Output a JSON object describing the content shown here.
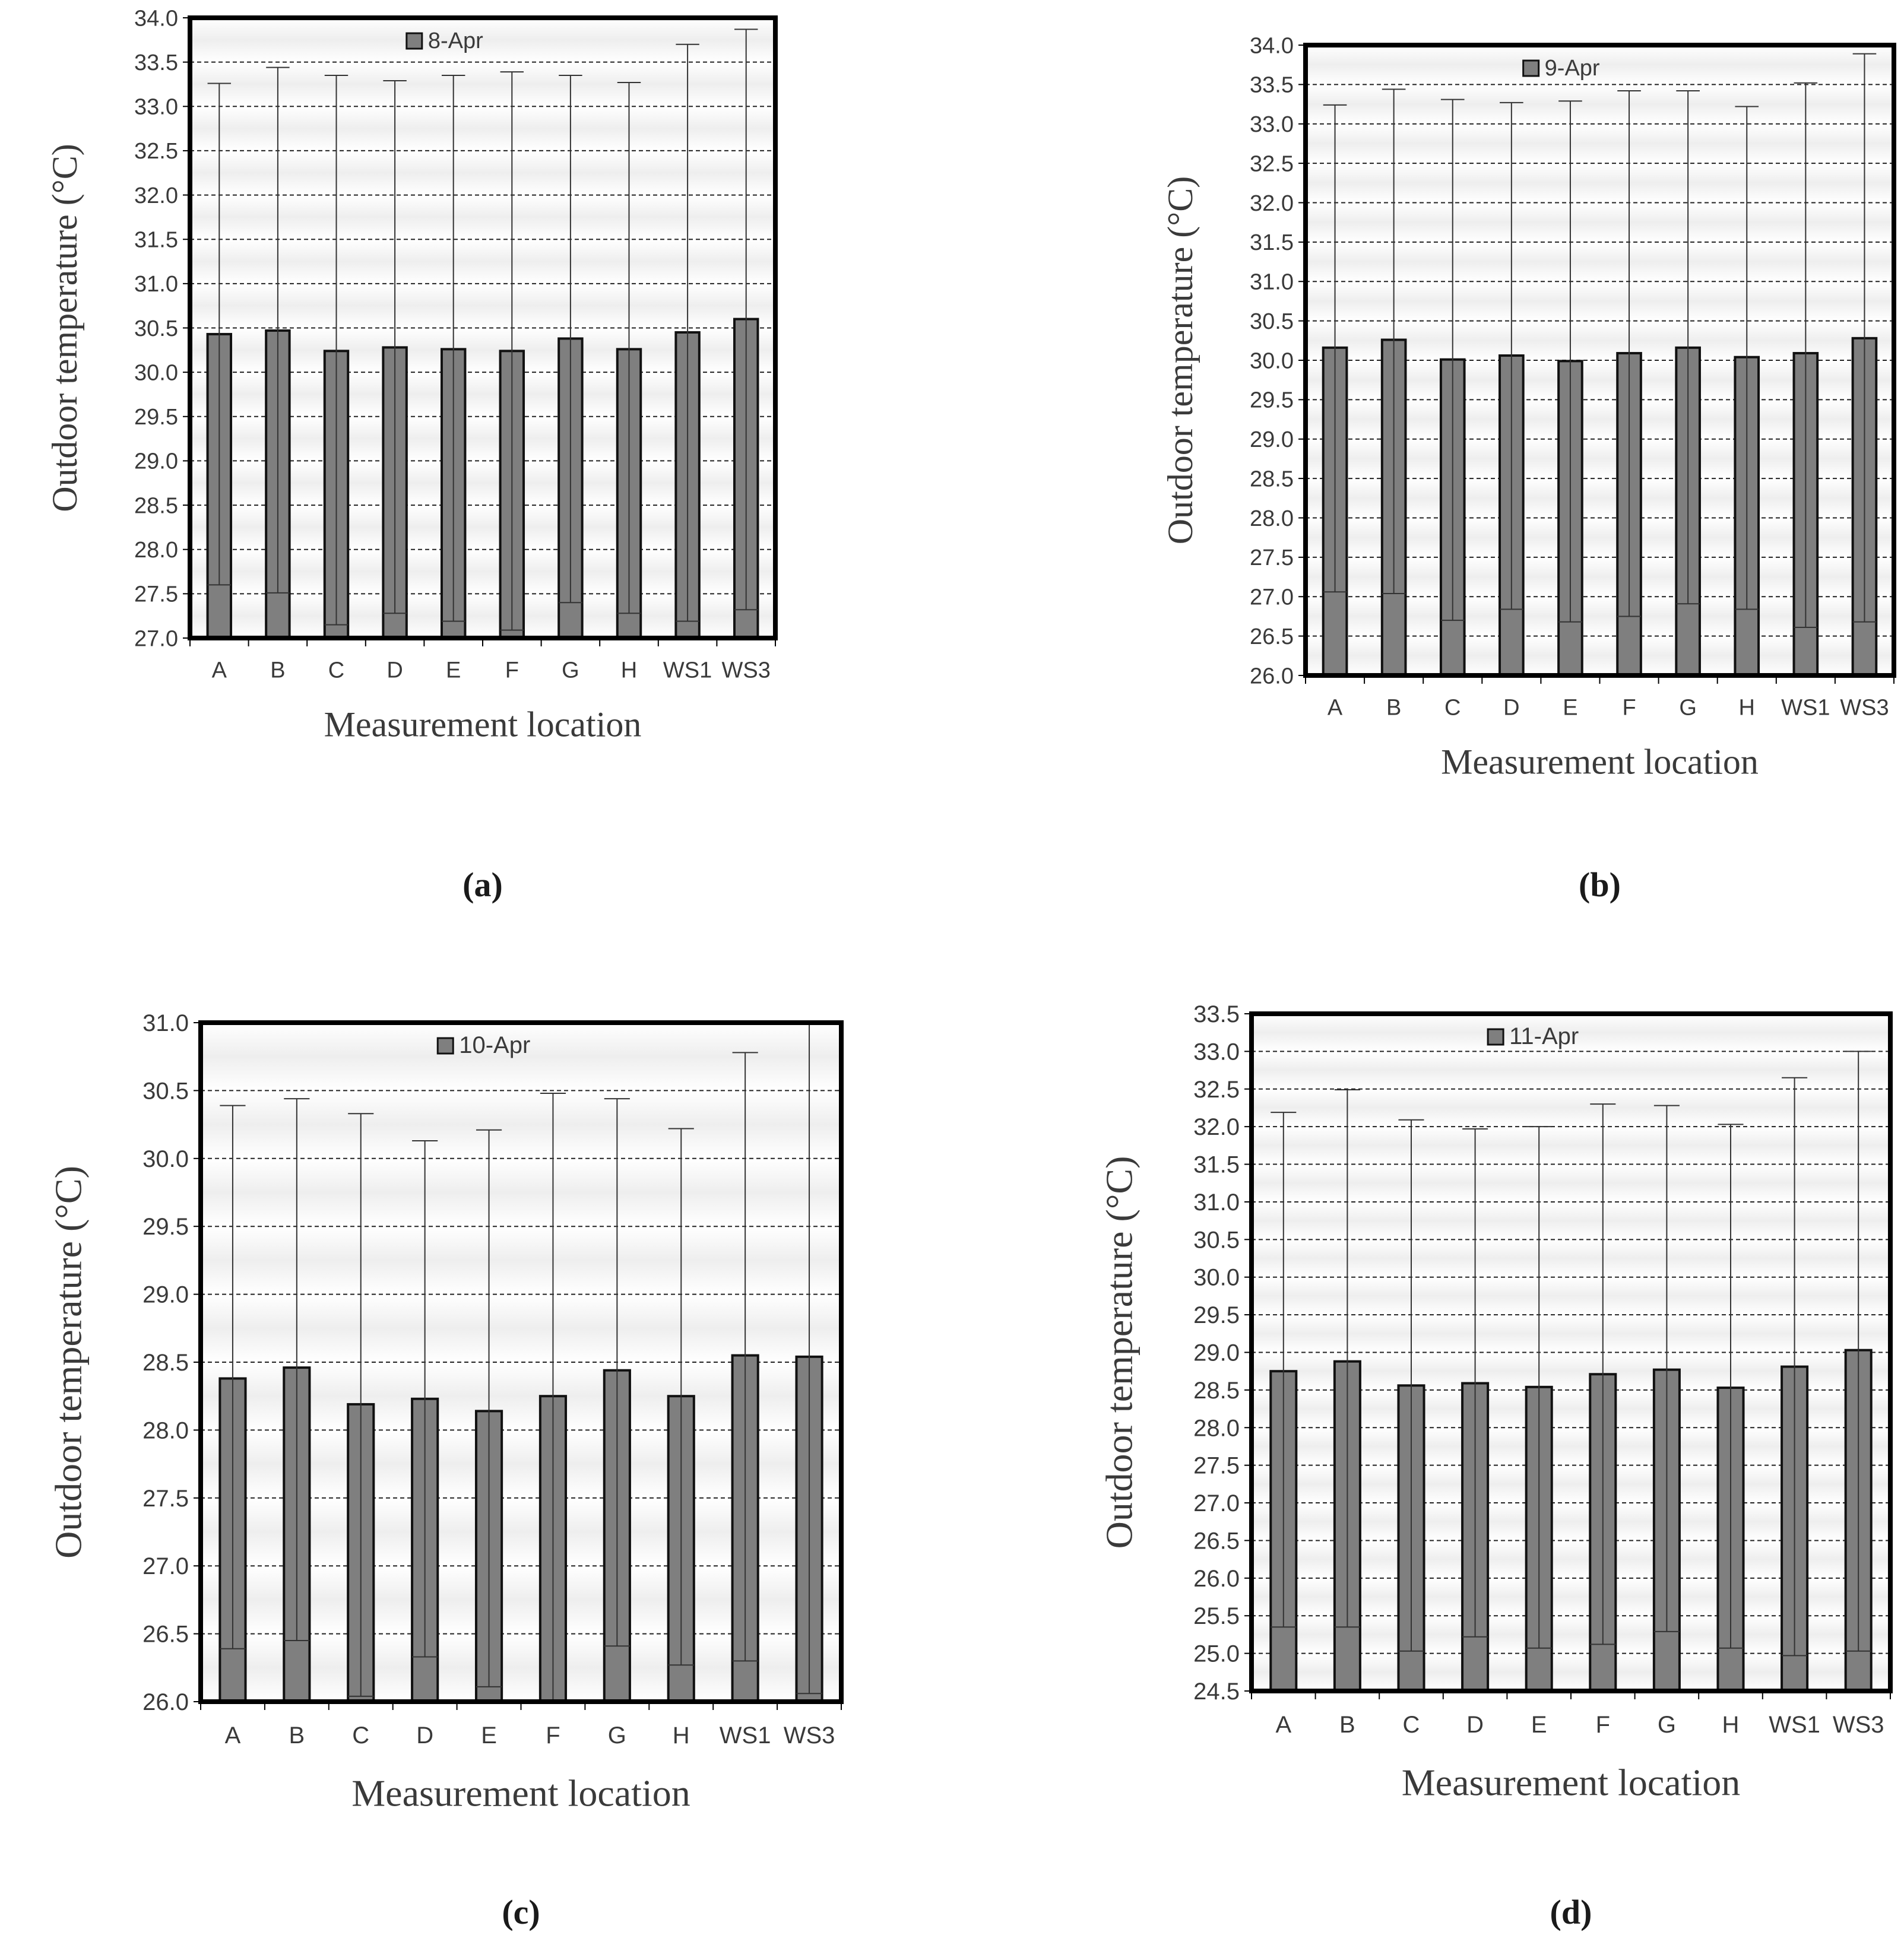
{
  "colors": {
    "bar_fill": "#7f7f7f",
    "bar_stroke": "#111111",
    "grid": "#222222",
    "axis": "#000000",
    "frame": "#000000",
    "error_bar": "#333333",
    "text": "#3a3a3a",
    "row_shade": "#eeeeee"
  },
  "chart_data": [
    {
      "panel": "a",
      "type": "bar",
      "caption": "(a)",
      "legend": "8-Apr",
      "xlabel": "Measurement location",
      "ylabel": "Outdoor temperature (°C)",
      "ylim": [
        27.0,
        34.0
      ],
      "ytick_step": 0.5,
      "ytick_labels": [
        "27.0",
        "27.5",
        "28.0",
        "28.5",
        "29.0",
        "29.5",
        "30.0",
        "30.5",
        "31.0",
        "31.5",
        "32.0",
        "32.5",
        "33.0",
        "33.5",
        "34.0"
      ],
      "categories": [
        "A",
        "B",
        "C",
        "D",
        "E",
        "F",
        "G",
        "H",
        "WS1",
        "WS3"
      ],
      "values": [
        30.43,
        30.47,
        30.24,
        30.28,
        30.26,
        30.24,
        30.38,
        30.26,
        30.45,
        30.6
      ],
      "min": [
        27.6,
        27.51,
        27.15,
        27.28,
        27.19,
        27.09,
        27.4,
        27.28,
        27.19,
        27.32
      ],
      "max": [
        33.26,
        33.44,
        33.35,
        33.29,
        33.35,
        33.39,
        33.35,
        33.27,
        33.7,
        33.87
      ]
    },
    {
      "panel": "b",
      "type": "bar",
      "caption": "(b)",
      "legend": "9-Apr",
      "xlabel": "Measurement location",
      "ylabel": "Outdoor temperature (°C)",
      "ylim": [
        26.0,
        34.0
      ],
      "ytick_step": 0.5,
      "ytick_labels": [
        "26.0",
        "26.5",
        "27.0",
        "27.5",
        "28.0",
        "28.5",
        "29.0",
        "29.5",
        "30.0",
        "30.5",
        "31.0",
        "31.5",
        "32.0",
        "32.5",
        "33.0",
        "33.5",
        "34.0"
      ],
      "categories": [
        "A",
        "B",
        "C",
        "D",
        "E",
        "F",
        "G",
        "H",
        "WS1",
        "WS3"
      ],
      "values": [
        30.16,
        30.26,
        30.01,
        30.06,
        29.99,
        30.09,
        30.16,
        30.04,
        30.09,
        30.28
      ],
      "min": [
        27.06,
        27.04,
        26.7,
        26.84,
        26.68,
        26.75,
        26.91,
        26.84,
        26.61,
        26.68
      ],
      "max": [
        33.24,
        33.44,
        33.31,
        33.27,
        33.29,
        33.42,
        33.42,
        33.22,
        33.52,
        33.89
      ]
    },
    {
      "panel": "c",
      "type": "bar",
      "caption": "(c)",
      "legend": "10-Apr",
      "xlabel": "Measurement location",
      "ylabel": "Outdoor temperature (°C)",
      "ylim": [
        26.0,
        31.0
      ],
      "ytick_step": 0.5,
      "ytick_labels": [
        "26.0",
        "26.5",
        "27.0",
        "27.5",
        "28.0",
        "28.5",
        "29.0",
        "29.5",
        "30.0",
        "30.5",
        "31.0"
      ],
      "categories": [
        "A",
        "B",
        "C",
        "D",
        "E",
        "F",
        "G",
        "H",
        "WS1",
        "WS3"
      ],
      "values": [
        28.38,
        28.46,
        28.19,
        28.23,
        28.14,
        28.25,
        28.44,
        28.25,
        28.55,
        28.54
      ],
      "min": [
        26.39,
        26.45,
        26.04,
        26.33,
        26.11,
        26.01,
        26.41,
        26.27,
        26.3,
        26.06
      ],
      "max": [
        30.39,
        30.44,
        30.33,
        30.13,
        30.21,
        30.48,
        30.44,
        30.22,
        30.78,
        31.0
      ]
    },
    {
      "panel": "d",
      "type": "bar",
      "caption": "(d)",
      "legend": "11-Apr",
      "xlabel": "Measurement location",
      "ylabel": "Outdoor temperature (°C)",
      "ylim": [
        24.5,
        33.5
      ],
      "ytick_step": 0.5,
      "ytick_labels": [
        "24.5",
        "25.0",
        "25.5",
        "26.0",
        "26.5",
        "27.0",
        "27.5",
        "28.0",
        "28.5",
        "29.0",
        "29.5",
        "30.0",
        "30.5",
        "31.0",
        "31.5",
        "32.0",
        "32.5",
        "33.0",
        "33.5"
      ],
      "categories": [
        "A",
        "B",
        "C",
        "D",
        "E",
        "F",
        "G",
        "H",
        "WS1",
        "WS3"
      ],
      "values": [
        28.75,
        28.88,
        28.56,
        28.59,
        28.54,
        28.71,
        28.77,
        28.53,
        28.81,
        29.03
      ],
      "min": [
        25.35,
        25.35,
        25.03,
        25.22,
        25.07,
        25.12,
        25.29,
        25.07,
        24.97,
        25.03
      ],
      "max": [
        32.19,
        32.49,
        32.09,
        31.97,
        32.0,
        32.3,
        32.28,
        32.03,
        32.65,
        33.0
      ]
    }
  ]
}
